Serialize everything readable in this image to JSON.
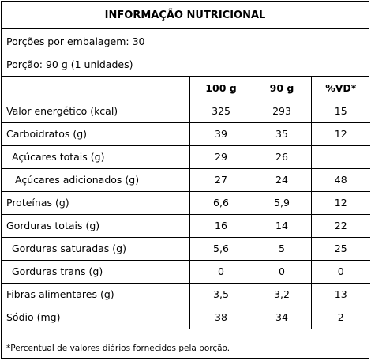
{
  "label": {
    "title": "INFORMAÇÃO NUTRICIONAL",
    "servings_per_package": "Porções por embalagem: 30",
    "serving_size": "Porção: 90 g (1 unidades)",
    "columns": [
      "",
      "100 g",
      "90 g",
      "%VD*"
    ],
    "rows": [
      {
        "name": "Valor energético (kcal)",
        "v100": "325",
        "v90": "293",
        "vd": "15"
      },
      {
        "name": "Carboidratos (g)",
        "v100": "39",
        "v90": "35",
        "vd": "12"
      },
      {
        "name": "Açúcares totais (g)",
        "v100": "29",
        "v90": "26",
        "vd": ""
      },
      {
        "name": "Açúcares adicionados (g)",
        "v100": "27",
        "v90": "24",
        "vd": "48"
      },
      {
        "name": "Proteínas (g)",
        "v100": "6,6",
        "v90": "5,9",
        "vd": "12"
      },
      {
        "name": "Gorduras totais (g)",
        "v100": "16",
        "v90": "14",
        "vd": "22"
      },
      {
        "name": "Gorduras saturadas (g)",
        "v100": "5,6",
        "v90": "5",
        "vd": "25"
      },
      {
        "name": "Gorduras trans (g)",
        "v100": "0",
        "v90": "0",
        "vd": "0"
      },
      {
        "name": "Fibras alimentares (g)",
        "v100": "3,5",
        "v90": "3,2",
        "vd": "13"
      },
      {
        "name": "Sódio (mg)",
        "v100": "38",
        "v90": "34",
        "vd": "2"
      }
    ],
    "footnote": "*Percentual de valores diários fornecidos pela porção."
  }
}
